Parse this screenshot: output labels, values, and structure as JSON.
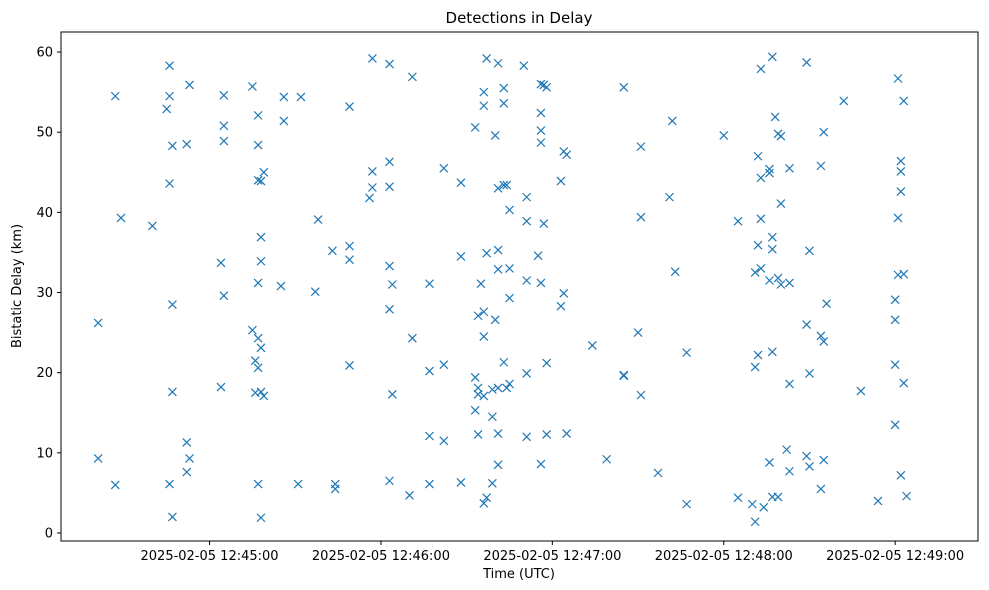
{
  "chart_data": {
    "type": "scatter",
    "title": "Detections in Delay",
    "xlabel": "Time (UTC)",
    "ylabel": "Bistatic Delay (km)",
    "xlim": [
      "2025-02-05 12:44:08",
      "2025-02-05 12:49:29"
    ],
    "ylim": [
      -1,
      62.5
    ],
    "xticks": [
      {
        "value": "2025-02-05 12:45:00",
        "label": "2025-02-05 12:45:00"
      },
      {
        "value": "2025-02-05 12:46:00",
        "label": "2025-02-05 12:46:00"
      },
      {
        "value": "2025-02-05 12:47:00",
        "label": "2025-02-05 12:47:00"
      },
      {
        "value": "2025-02-05 12:48:00",
        "label": "2025-02-05 12:48:00"
      },
      {
        "value": "2025-02-05 12:49:00",
        "label": "2025-02-05 12:49:00"
      }
    ],
    "yticks": [
      0,
      10,
      20,
      30,
      40,
      50,
      60
    ],
    "grid": false,
    "marker": "x",
    "color": "#1f77b4",
    "series": [
      {
        "points": [
          [
            "2025-02-05 12:44:21",
            26.2
          ],
          [
            "2025-02-05 12:44:21",
            9.3
          ],
          [
            "2025-02-05 12:44:27",
            54.5
          ],
          [
            "2025-02-05 12:44:27",
            6.0
          ],
          [
            "2025-02-05 12:44:29",
            39.3
          ],
          [
            "2025-02-05 12:44:40",
            38.3
          ],
          [
            "2025-02-05 12:44:45",
            52.9
          ],
          [
            "2025-02-05 12:44:46",
            58.3
          ],
          [
            "2025-02-05 12:44:46",
            54.5
          ],
          [
            "2025-02-05 12:44:46",
            43.6
          ],
          [
            "2025-02-05 12:44:46",
            6.1
          ],
          [
            "2025-02-05 12:44:47",
            48.3
          ],
          [
            "2025-02-05 12:44:47",
            28.5
          ],
          [
            "2025-02-05 12:44:47",
            17.6
          ],
          [
            "2025-02-05 12:44:47",
            2.0
          ],
          [
            "2025-02-05 12:44:53",
            55.9
          ],
          [
            "2025-02-05 12:44:52",
            48.5
          ],
          [
            "2025-02-05 12:44:52",
            11.3
          ],
          [
            "2025-02-05 12:44:53",
            9.3
          ],
          [
            "2025-02-05 12:44:52",
            7.6
          ],
          [
            "2025-02-05 12:45:05",
            54.6
          ],
          [
            "2025-02-05 12:45:05",
            50.8
          ],
          [
            "2025-02-05 12:45:05",
            48.9
          ],
          [
            "2025-02-05 12:45:04",
            33.7
          ],
          [
            "2025-02-05 12:45:05",
            29.6
          ],
          [
            "2025-02-05 12:45:04",
            18.2
          ],
          [
            "2025-02-05 12:45:15",
            55.7
          ],
          [
            "2025-02-05 12:45:17",
            52.1
          ],
          [
            "2025-02-05 12:45:17",
            48.4
          ],
          [
            "2025-02-05 12:45:17",
            44.0
          ],
          [
            "2025-02-05 12:45:18",
            43.9
          ],
          [
            "2025-02-05 12:45:19",
            45.0
          ],
          [
            "2025-02-05 12:45:18",
            36.9
          ],
          [
            "2025-02-05 12:45:18",
            33.9
          ],
          [
            "2025-02-05 12:45:17",
            31.2
          ],
          [
            "2025-02-05 12:45:15",
            25.3
          ],
          [
            "2025-02-05 12:45:17",
            24.3
          ],
          [
            "2025-02-05 12:45:18",
            23.1
          ],
          [
            "2025-02-05 12:45:16",
            21.5
          ],
          [
            "2025-02-05 12:45:17",
            20.6
          ],
          [
            "2025-02-05 12:45:16",
            17.5
          ],
          [
            "2025-02-05 12:45:18",
            17.6
          ],
          [
            "2025-02-05 12:45:19",
            17.1
          ],
          [
            "2025-02-05 12:45:17",
            6.1
          ],
          [
            "2025-02-05 12:45:18",
            1.9
          ],
          [
            "2025-02-05 12:45:26",
            54.4
          ],
          [
            "2025-02-05 12:45:26",
            51.4
          ],
          [
            "2025-02-05 12:45:25",
            30.8
          ],
          [
            "2025-02-05 12:45:32",
            54.4
          ],
          [
            "2025-02-05 12:45:31",
            6.1
          ],
          [
            "2025-02-05 12:45:38",
            39.1
          ],
          [
            "2025-02-05 12:45:37",
            30.1
          ],
          [
            "2025-02-05 12:45:43",
            35.2
          ],
          [
            "2025-02-05 12:45:44",
            6.1
          ],
          [
            "2025-02-05 12:45:44",
            5.5
          ],
          [
            "2025-02-05 12:45:49",
            53.2
          ],
          [
            "2025-02-05 12:45:49",
            35.8
          ],
          [
            "2025-02-05 12:45:49",
            34.1
          ],
          [
            "2025-02-05 12:45:49",
            20.9
          ],
          [
            "2025-02-05 12:45:57",
            59.2
          ],
          [
            "2025-02-05 12:45:57",
            45.1
          ],
          [
            "2025-02-05 12:45:57",
            43.1
          ],
          [
            "2025-02-05 12:45:56",
            41.8
          ],
          [
            "2025-02-05 12:46:03",
            58.5
          ],
          [
            "2025-02-05 12:46:03",
            46.3
          ],
          [
            "2025-02-05 12:46:03",
            43.2
          ],
          [
            "2025-02-05 12:46:03",
            33.3
          ],
          [
            "2025-02-05 12:46:04",
            31.0
          ],
          [
            "2025-02-05 12:46:03",
            27.9
          ],
          [
            "2025-02-05 12:46:04",
            17.3
          ],
          [
            "2025-02-05 12:46:03",
            6.5
          ],
          [
            "2025-02-05 12:46:11",
            56.9
          ],
          [
            "2025-02-05 12:46:11",
            24.3
          ],
          [
            "2025-02-05 12:46:10",
            4.7
          ],
          [
            "2025-02-05 12:46:17",
            31.1
          ],
          [
            "2025-02-05 12:46:17",
            20.2
          ],
          [
            "2025-02-05 12:46:17",
            12.1
          ],
          [
            "2025-02-05 12:46:17",
            6.1
          ],
          [
            "2025-02-05 12:46:22",
            45.5
          ],
          [
            "2025-02-05 12:46:22",
            21.0
          ],
          [
            "2025-02-05 12:46:22",
            11.5
          ],
          [
            "2025-02-05 12:46:28",
            43.7
          ],
          [
            "2025-02-05 12:46:28",
            34.5
          ],
          [
            "2025-02-05 12:46:28",
            6.3
          ],
          [
            "2025-02-05 12:46:33",
            50.6
          ],
          [
            "2025-02-05 12:46:33",
            19.4
          ],
          [
            "2025-02-05 12:46:33",
            15.3
          ],
          [
            "2025-02-05 12:46:34",
            27.1
          ],
          [
            "2025-02-05 12:46:34",
            18.1
          ],
          [
            "2025-02-05 12:46:34",
            17.3
          ],
          [
            "2025-02-05 12:46:34",
            12.3
          ],
          [
            "2025-02-05 12:46:35",
            31.1
          ],
          [
            "2025-02-05 12:46:36",
            55.0
          ],
          [
            "2025-02-05 12:46:36",
            53.3
          ],
          [
            "2025-02-05 12:46:36",
            27.6
          ],
          [
            "2025-02-05 12:46:36",
            24.5
          ],
          [
            "2025-02-05 12:46:36",
            17.1
          ],
          [
            "2025-02-05 12:46:37",
            4.4
          ],
          [
            "2025-02-05 12:46:36",
            3.7
          ],
          [
            "2025-02-05 12:46:37",
            59.2
          ],
          [
            "2025-02-05 12:46:37",
            34.9
          ],
          [
            "2025-02-05 12:46:39",
            17.9
          ],
          [
            "2025-02-05 12:46:39",
            14.5
          ],
          [
            "2025-02-05 12:46:39",
            6.2
          ],
          [
            "2025-02-05 12:46:40",
            49.6
          ],
          [
            "2025-02-05 12:46:40",
            26.6
          ],
          [
            "2025-02-05 12:46:41",
            58.6
          ],
          [
            "2025-02-05 12:46:41",
            43.0
          ],
          [
            "2025-02-05 12:46:41",
            35.3
          ],
          [
            "2025-02-05 12:46:41",
            32.9
          ],
          [
            "2025-02-05 12:46:41",
            18.1
          ],
          [
            "2025-02-05 12:46:41",
            12.4
          ],
          [
            "2025-02-05 12:46:41",
            8.5
          ],
          [
            "2025-02-05 12:46:43",
            55.5
          ],
          [
            "2025-02-05 12:46:43",
            53.6
          ],
          [
            "2025-02-05 12:46:43",
            43.4
          ],
          [
            "2025-02-05 12:46:43",
            21.3
          ],
          [
            "2025-02-05 12:46:44",
            43.4
          ],
          [
            "2025-02-05 12:46:45",
            40.3
          ],
          [
            "2025-02-05 12:46:45",
            33.0
          ],
          [
            "2025-02-05 12:46:45",
            29.3
          ],
          [
            "2025-02-05 12:46:45",
            18.6
          ],
          [
            "2025-02-05 12:46:44",
            18.1
          ],
          [
            "2025-02-05 12:46:50",
            58.3
          ],
          [
            "2025-02-05 12:46:51",
            41.9
          ],
          [
            "2025-02-05 12:46:51",
            38.9
          ],
          [
            "2025-02-05 12:46:51",
            31.5
          ],
          [
            "2025-02-05 12:46:51",
            19.9
          ],
          [
            "2025-02-05 12:46:51",
            12.0
          ],
          [
            "2025-02-05 12:46:55",
            34.6
          ],
          [
            "2025-02-05 12:46:56",
            56.0
          ],
          [
            "2025-02-05 12:46:57",
            55.9
          ],
          [
            "2025-02-05 12:46:56",
            52.4
          ],
          [
            "2025-02-05 12:46:56",
            50.2
          ],
          [
            "2025-02-05 12:46:56",
            48.7
          ],
          [
            "2025-02-05 12:46:57",
            38.6
          ],
          [
            "2025-02-05 12:46:56",
            31.2
          ],
          [
            "2025-02-05 12:46:56",
            8.6
          ],
          [
            "2025-02-05 12:46:58",
            55.6
          ],
          [
            "2025-02-05 12:46:58",
            21.2
          ],
          [
            "2025-02-05 12:46:58",
            12.3
          ],
          [
            "2025-02-05 12:47:03",
            43.9
          ],
          [
            "2025-02-05 12:47:04",
            47.6
          ],
          [
            "2025-02-05 12:47:05",
            47.2
          ],
          [
            "2025-02-05 12:47:04",
            29.9
          ],
          [
            "2025-02-05 12:47:03",
            28.3
          ],
          [
            "2025-02-05 12:47:05",
            12.4
          ],
          [
            "2025-02-05 12:47:14",
            23.4
          ],
          [
            "2025-02-05 12:47:19",
            9.2
          ],
          [
            "2025-02-05 12:47:25",
            55.6
          ],
          [
            "2025-02-05 12:47:25",
            19.7
          ],
          [
            "2025-02-05 12:47:25",
            19.6
          ],
          [
            "2025-02-05 12:47:30",
            25.0
          ],
          [
            "2025-02-05 12:47:31",
            48.2
          ],
          [
            "2025-02-05 12:47:31",
            39.4
          ],
          [
            "2025-02-05 12:47:31",
            17.2
          ],
          [
            "2025-02-05 12:47:37",
            7.5
          ],
          [
            "2025-02-05 12:47:42",
            51.4
          ],
          [
            "2025-02-05 12:47:41",
            41.9
          ],
          [
            "2025-02-05 12:47:43",
            32.6
          ],
          [
            "2025-02-05 12:47:47",
            22.5
          ],
          [
            "2025-02-05 12:47:47",
            3.6
          ],
          [
            "2025-02-05 12:48:00",
            49.6
          ],
          [
            "2025-02-05 12:48:05",
            38.9
          ],
          [
            "2025-02-05 12:48:05",
            4.4
          ],
          [
            "2025-02-05 12:48:10",
            3.6
          ],
          [
            "2025-02-05 12:48:11",
            32.5
          ],
          [
            "2025-02-05 12:48:11",
            20.7
          ],
          [
            "2025-02-05 12:48:11",
            1.4
          ],
          [
            "2025-02-05 12:48:12",
            47.0
          ],
          [
            "2025-02-05 12:48:12",
            35.9
          ],
          [
            "2025-02-05 12:48:12",
            22.2
          ],
          [
            "2025-02-05 12:48:13",
            57.9
          ],
          [
            "2025-02-05 12:48:13",
            44.3
          ],
          [
            "2025-02-05 12:48:13",
            39.2
          ],
          [
            "2025-02-05 12:48:13",
            33.0
          ],
          [
            "2025-02-05 12:48:14",
            3.2
          ],
          [
            "2025-02-05 12:48:16",
            45.4
          ],
          [
            "2025-02-05 12:48:16",
            44.9
          ],
          [
            "2025-02-05 12:48:16",
            31.5
          ],
          [
            "2025-02-05 12:48:16",
            8.8
          ],
          [
            "2025-02-05 12:48:17",
            59.4
          ],
          [
            "2025-02-05 12:48:18",
            51.9
          ],
          [
            "2025-02-05 12:48:17",
            36.9
          ],
          [
            "2025-02-05 12:48:17",
            35.4
          ],
          [
            "2025-02-05 12:48:17",
            22.6
          ],
          [
            "2025-02-05 12:48:17",
            4.5
          ],
          [
            "2025-02-05 12:48:19",
            49.8
          ],
          [
            "2025-02-05 12:48:20",
            49.5
          ],
          [
            "2025-02-05 12:48:20",
            41.1
          ],
          [
            "2025-02-05 12:48:19",
            31.8
          ],
          [
            "2025-02-05 12:48:20",
            31.0
          ],
          [
            "2025-02-05 12:48:19",
            4.5
          ],
          [
            "2025-02-05 12:48:22",
            10.4
          ],
          [
            "2025-02-05 12:48:23",
            45.5
          ],
          [
            "2025-02-05 12:48:23",
            31.2
          ],
          [
            "2025-02-05 12:48:23",
            18.6
          ],
          [
            "2025-02-05 12:48:23",
            7.7
          ],
          [
            "2025-02-05 12:48:29",
            58.7
          ],
          [
            "2025-02-05 12:48:29",
            26.0
          ],
          [
            "2025-02-05 12:48:29",
            9.6
          ],
          [
            "2025-02-05 12:48:30",
            35.2
          ],
          [
            "2025-02-05 12:48:30",
            19.9
          ],
          [
            "2025-02-05 12:48:30",
            8.3
          ],
          [
            "2025-02-05 12:48:34",
            45.8
          ],
          [
            "2025-02-05 12:48:34",
            24.6
          ],
          [
            "2025-02-05 12:48:34",
            5.5
          ],
          [
            "2025-02-05 12:48:35",
            50.0
          ],
          [
            "2025-02-05 12:48:35",
            23.9
          ],
          [
            "2025-02-05 12:48:35",
            9.1
          ],
          [
            "2025-02-05 12:48:36",
            28.6
          ],
          [
            "2025-02-05 12:48:42",
            53.9
          ],
          [
            "2025-02-05 12:48:48",
            17.7
          ],
          [
            "2025-02-05 12:48:54",
            4.0
          ],
          [
            "2025-02-05 12:49:00",
            29.1
          ],
          [
            "2025-02-05 12:49:00",
            26.6
          ],
          [
            "2025-02-05 12:49:00",
            21.0
          ],
          [
            "2025-02-05 12:49:00",
            13.5
          ],
          [
            "2025-02-05 12:49:01",
            56.7
          ],
          [
            "2025-02-05 12:49:01",
            39.3
          ],
          [
            "2025-02-05 12:49:01",
            32.2
          ],
          [
            "2025-02-05 12:49:02",
            46.4
          ],
          [
            "2025-02-05 12:49:02",
            45.1
          ],
          [
            "2025-02-05 12:49:02",
            42.6
          ],
          [
            "2025-02-05 12:49:02",
            7.2
          ],
          [
            "2025-02-05 12:49:03",
            53.9
          ],
          [
            "2025-02-05 12:49:03",
            32.3
          ],
          [
            "2025-02-05 12:49:03",
            18.7
          ],
          [
            "2025-02-05 12:49:04",
            4.6
          ]
        ]
      }
    ]
  }
}
